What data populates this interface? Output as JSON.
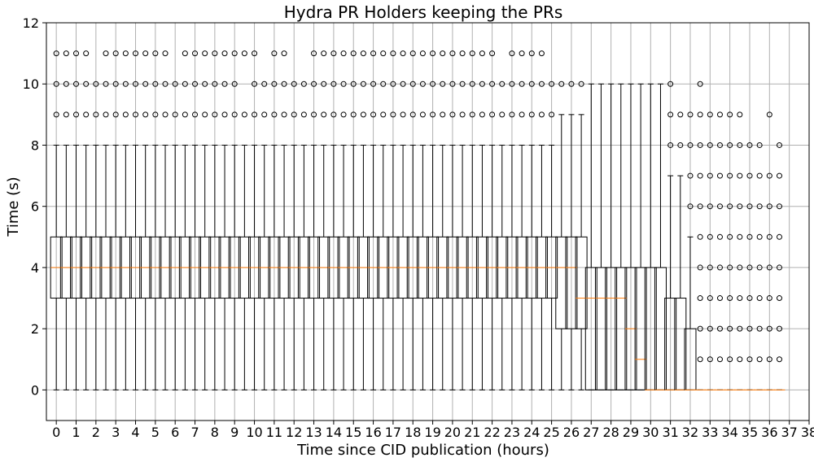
{
  "chart_data": {
    "type": "box",
    "title": "Hydra PR Holders keeping the PRs",
    "xlabel": "Time since CID publication (hours)",
    "ylabel": "Time (s)",
    "ylim": [
      -1,
      12
    ],
    "xlim": [
      -0.5,
      38
    ],
    "yticks": [
      0,
      2,
      4,
      6,
      8,
      10,
      12
    ],
    "xticks": [
      0,
      1,
      2,
      3,
      4,
      5,
      6,
      7,
      8,
      9,
      10,
      11,
      12,
      13,
      14,
      15,
      16,
      17,
      18,
      19,
      20,
      21,
      22,
      23,
      24,
      25,
      26,
      27,
      28,
      29,
      30,
      31,
      32,
      33,
      34,
      35,
      36,
      37,
      38
    ],
    "grid": true,
    "box_step_hours": 0.5,
    "colors": {
      "box": "#000000",
      "median": "#ff7f0e",
      "grid": "#b0b0b0",
      "flier": "#000000"
    },
    "boxes": [
      {
        "x": 0.0,
        "q1": 3,
        "median": 4,
        "q3": 5,
        "whisker_low": 0,
        "whisker_high": 8,
        "outliers": [
          9,
          10,
          11
        ]
      },
      {
        "x": 0.5,
        "q1": 3,
        "median": 4,
        "q3": 5,
        "whisker_low": 0,
        "whisker_high": 8,
        "outliers": [
          9,
          10,
          11
        ]
      },
      {
        "x": 1.0,
        "q1": 3,
        "median": 4,
        "q3": 5,
        "whisker_low": 0,
        "whisker_high": 8,
        "outliers": [
          9,
          10,
          11
        ]
      },
      {
        "x": 1.5,
        "q1": 3,
        "median": 4,
        "q3": 5,
        "whisker_low": 0,
        "whisker_high": 8,
        "outliers": [
          9,
          10,
          11
        ]
      },
      {
        "x": 2.0,
        "q1": 3,
        "median": 4,
        "q3": 5,
        "whisker_low": 0,
        "whisker_high": 8,
        "outliers": [
          9,
          10
        ]
      },
      {
        "x": 2.5,
        "q1": 3,
        "median": 4,
        "q3": 5,
        "whisker_low": 0,
        "whisker_high": 8,
        "outliers": [
          9,
          10,
          11
        ]
      },
      {
        "x": 3.0,
        "q1": 3,
        "median": 4,
        "q3": 5,
        "whisker_low": 0,
        "whisker_high": 8,
        "outliers": [
          9,
          10,
          11
        ]
      },
      {
        "x": 3.5,
        "q1": 3,
        "median": 4,
        "q3": 5,
        "whisker_low": 0,
        "whisker_high": 8,
        "outliers": [
          9,
          10,
          11
        ]
      },
      {
        "x": 4.0,
        "q1": 3,
        "median": 4,
        "q3": 5,
        "whisker_low": 0,
        "whisker_high": 8,
        "outliers": [
          9,
          10,
          11
        ]
      },
      {
        "x": 4.5,
        "q1": 3,
        "median": 4,
        "q3": 5,
        "whisker_low": 0,
        "whisker_high": 8,
        "outliers": [
          9,
          10,
          11
        ]
      },
      {
        "x": 5.0,
        "q1": 3,
        "median": 4,
        "q3": 5,
        "whisker_low": 0,
        "whisker_high": 8,
        "outliers": [
          9,
          10,
          11
        ]
      },
      {
        "x": 5.5,
        "q1": 3,
        "median": 4,
        "q3": 5,
        "whisker_low": 0,
        "whisker_high": 8,
        "outliers": [
          9,
          10,
          11
        ]
      },
      {
        "x": 6.0,
        "q1": 3,
        "median": 4,
        "q3": 5,
        "whisker_low": 0,
        "whisker_high": 8,
        "outliers": [
          9,
          10
        ]
      },
      {
        "x": 6.5,
        "q1": 3,
        "median": 4,
        "q3": 5,
        "whisker_low": 0,
        "whisker_high": 8,
        "outliers": [
          9,
          10,
          11
        ]
      },
      {
        "x": 7.0,
        "q1": 3,
        "median": 4,
        "q3": 5,
        "whisker_low": 0,
        "whisker_high": 8,
        "outliers": [
          9,
          10,
          11
        ]
      },
      {
        "x": 7.5,
        "q1": 3,
        "median": 4,
        "q3": 5,
        "whisker_low": 0,
        "whisker_high": 8,
        "outliers": [
          9,
          10,
          11
        ]
      },
      {
        "x": 8.0,
        "q1": 3,
        "median": 4,
        "q3": 5,
        "whisker_low": 0,
        "whisker_high": 8,
        "outliers": [
          9,
          10,
          11
        ]
      },
      {
        "x": 8.5,
        "q1": 3,
        "median": 4,
        "q3": 5,
        "whisker_low": 0,
        "whisker_high": 8,
        "outliers": [
          9,
          10,
          11
        ]
      },
      {
        "x": 9.0,
        "q1": 3,
        "median": 4,
        "q3": 5,
        "whisker_low": 0,
        "whisker_high": 8,
        "outliers": [
          9,
          10,
          11
        ]
      },
      {
        "x": 9.5,
        "q1": 3,
        "median": 4,
        "q3": 5,
        "whisker_low": 0,
        "whisker_high": 8,
        "outliers": [
          9,
          11
        ]
      },
      {
        "x": 10.0,
        "q1": 3,
        "median": 4,
        "q3": 5,
        "whisker_low": 0,
        "whisker_high": 8,
        "outliers": [
          9,
          10,
          11
        ]
      },
      {
        "x": 10.5,
        "q1": 3,
        "median": 4,
        "q3": 5,
        "whisker_low": 0,
        "whisker_high": 8,
        "outliers": [
          9,
          10
        ]
      },
      {
        "x": 11.0,
        "q1": 3,
        "median": 4,
        "q3": 5,
        "whisker_low": 0,
        "whisker_high": 8,
        "outliers": [
          9,
          10,
          11
        ]
      },
      {
        "x": 11.5,
        "q1": 3,
        "median": 4,
        "q3": 5,
        "whisker_low": 0,
        "whisker_high": 8,
        "outliers": [
          9,
          10,
          11
        ]
      },
      {
        "x": 12.0,
        "q1": 3,
        "median": 4,
        "q3": 5,
        "whisker_low": 0,
        "whisker_high": 8,
        "outliers": [
          9,
          10
        ]
      },
      {
        "x": 12.5,
        "q1": 3,
        "median": 4,
        "q3": 5,
        "whisker_low": 0,
        "whisker_high": 8,
        "outliers": [
          9,
          10
        ]
      },
      {
        "x": 13.0,
        "q1": 3,
        "median": 4,
        "q3": 5,
        "whisker_low": 0,
        "whisker_high": 8,
        "outliers": [
          9,
          10,
          11
        ]
      },
      {
        "x": 13.5,
        "q1": 3,
        "median": 4,
        "q3": 5,
        "whisker_low": 0,
        "whisker_high": 8,
        "outliers": [
          9,
          10,
          11
        ]
      },
      {
        "x": 14.0,
        "q1": 3,
        "median": 4,
        "q3": 5,
        "whisker_low": 0,
        "whisker_high": 8,
        "outliers": [
          9,
          10,
          11
        ]
      },
      {
        "x": 14.5,
        "q1": 3,
        "median": 4,
        "q3": 5,
        "whisker_low": 0,
        "whisker_high": 8,
        "outliers": [
          9,
          10,
          11
        ]
      },
      {
        "x": 15.0,
        "q1": 3,
        "median": 4,
        "q3": 5,
        "whisker_low": 0,
        "whisker_high": 8,
        "outliers": [
          9,
          10,
          11
        ]
      },
      {
        "x": 15.5,
        "q1": 3,
        "median": 4,
        "q3": 5,
        "whisker_low": 0,
        "whisker_high": 8,
        "outliers": [
          9,
          10,
          11
        ]
      },
      {
        "x": 16.0,
        "q1": 3,
        "median": 4,
        "q3": 5,
        "whisker_low": 0,
        "whisker_high": 8,
        "outliers": [
          9,
          10,
          11
        ]
      },
      {
        "x": 16.5,
        "q1": 3,
        "median": 4,
        "q3": 5,
        "whisker_low": 0,
        "whisker_high": 8,
        "outliers": [
          9,
          10,
          11
        ]
      },
      {
        "x": 17.0,
        "q1": 3,
        "median": 4,
        "q3": 5,
        "whisker_low": 0,
        "whisker_high": 8,
        "outliers": [
          9,
          10,
          11
        ]
      },
      {
        "x": 17.5,
        "q1": 3,
        "median": 4,
        "q3": 5,
        "whisker_low": 0,
        "whisker_high": 8,
        "outliers": [
          9,
          10,
          11
        ]
      },
      {
        "x": 18.0,
        "q1": 3,
        "median": 4,
        "q3": 5,
        "whisker_low": 0,
        "whisker_high": 8,
        "outliers": [
          9,
          10,
          11
        ]
      },
      {
        "x": 18.5,
        "q1": 3,
        "median": 4,
        "q3": 5,
        "whisker_low": 0,
        "whisker_high": 8,
        "outliers": [
          9,
          10,
          11
        ]
      },
      {
        "x": 19.0,
        "q1": 3,
        "median": 4,
        "q3": 5,
        "whisker_low": 0,
        "whisker_high": 8,
        "outliers": [
          9,
          10,
          11
        ]
      },
      {
        "x": 19.5,
        "q1": 3,
        "median": 4,
        "q3": 5,
        "whisker_low": 0,
        "whisker_high": 8,
        "outliers": [
          9,
          10,
          11
        ]
      },
      {
        "x": 20.0,
        "q1": 3,
        "median": 4,
        "q3": 5,
        "whisker_low": 0,
        "whisker_high": 8,
        "outliers": [
          9,
          10,
          11
        ]
      },
      {
        "x": 20.5,
        "q1": 3,
        "median": 4,
        "q3": 5,
        "whisker_low": 0,
        "whisker_high": 8,
        "outliers": [
          9,
          10,
          11
        ]
      },
      {
        "x": 21.0,
        "q1": 3,
        "median": 4,
        "q3": 5,
        "whisker_low": 0,
        "whisker_high": 8,
        "outliers": [
          9,
          10,
          11
        ]
      },
      {
        "x": 21.5,
        "q1": 3,
        "median": 4,
        "q3": 5,
        "whisker_low": 0,
        "whisker_high": 8,
        "outliers": [
          9,
          10,
          11
        ]
      },
      {
        "x": 22.0,
        "q1": 3,
        "median": 4,
        "q3": 5,
        "whisker_low": 0,
        "whisker_high": 8,
        "outliers": [
          9,
          10,
          11
        ]
      },
      {
        "x": 22.5,
        "q1": 3,
        "median": 4,
        "q3": 5,
        "whisker_low": 0,
        "whisker_high": 8,
        "outliers": [
          9,
          10
        ]
      },
      {
        "x": 23.0,
        "q1": 3,
        "median": 4,
        "q3": 5,
        "whisker_low": 0,
        "whisker_high": 8,
        "outliers": [
          9,
          10,
          11
        ]
      },
      {
        "x": 23.5,
        "q1": 3,
        "median": 4,
        "q3": 5,
        "whisker_low": 0,
        "whisker_high": 8,
        "outliers": [
          9,
          10,
          11
        ]
      },
      {
        "x": 24.0,
        "q1": 3,
        "median": 4,
        "q3": 5,
        "whisker_low": 0,
        "whisker_high": 8,
        "outliers": [
          9,
          10,
          11
        ]
      },
      {
        "x": 24.5,
        "q1": 3,
        "median": 4,
        "q3": 5,
        "whisker_low": 0,
        "whisker_high": 8,
        "outliers": [
          9,
          10,
          11
        ]
      },
      {
        "x": 25.0,
        "q1": 3,
        "median": 4,
        "q3": 5,
        "whisker_low": 0,
        "whisker_high": 8,
        "outliers": [
          9,
          10
        ]
      },
      {
        "x": 25.5,
        "q1": 2,
        "median": 4,
        "q3": 5,
        "whisker_low": 0,
        "whisker_high": 9,
        "outliers": [
          10
        ]
      },
      {
        "x": 26.0,
        "q1": 2,
        "median": 4,
        "q3": 5,
        "whisker_low": 0,
        "whisker_high": 9,
        "outliers": [
          10
        ]
      },
      {
        "x": 26.5,
        "q1": 2,
        "median": 3,
        "q3": 5,
        "whisker_low": 0,
        "whisker_high": 9,
        "outliers": [
          10
        ]
      },
      {
        "x": 27.0,
        "q1": 0,
        "median": 3,
        "q3": 4,
        "whisker_low": 0,
        "whisker_high": 10,
        "outliers": []
      },
      {
        "x": 27.5,
        "q1": 0,
        "median": 3,
        "q3": 4,
        "whisker_low": 0,
        "whisker_high": 10,
        "outliers": []
      },
      {
        "x": 28.0,
        "q1": 0,
        "median": 3,
        "q3": 4,
        "whisker_low": 0,
        "whisker_high": 10,
        "outliers": []
      },
      {
        "x": 28.5,
        "q1": 0,
        "median": 3,
        "q3": 4,
        "whisker_low": 0,
        "whisker_high": 10,
        "outliers": []
      },
      {
        "x": 29.0,
        "q1": 0,
        "median": 2,
        "q3": 4,
        "whisker_low": 0,
        "whisker_high": 10,
        "outliers": []
      },
      {
        "x": 29.5,
        "q1": 0,
        "median": 1,
        "q3": 4,
        "whisker_low": 0,
        "whisker_high": 10,
        "outliers": []
      },
      {
        "x": 30.0,
        "q1": 0,
        "median": 0,
        "q3": 4,
        "whisker_low": 0,
        "whisker_high": 10,
        "outliers": []
      },
      {
        "x": 30.5,
        "q1": 0,
        "median": 0,
        "q3": 4,
        "whisker_low": 0,
        "whisker_high": 10,
        "outliers": []
      },
      {
        "x": 31.0,
        "q1": 0,
        "median": 0,
        "q3": 3,
        "whisker_low": 0,
        "whisker_high": 7,
        "outliers": [
          8,
          9,
          10
        ]
      },
      {
        "x": 31.5,
        "q1": 0,
        "median": 0,
        "q3": 3,
        "whisker_low": 0,
        "whisker_high": 7,
        "outliers": [
          8,
          9
        ]
      },
      {
        "x": 32.0,
        "q1": 0,
        "median": 0,
        "q3": 2,
        "whisker_low": 0,
        "whisker_high": 5,
        "outliers": [
          6,
          7,
          8,
          9
        ]
      },
      {
        "x": 32.5,
        "q1": 0,
        "median": 0,
        "q3": 0,
        "whisker_low": 0,
        "whisker_high": 0,
        "outliers": [
          1,
          2,
          3,
          4,
          5,
          6,
          7,
          8,
          9,
          10
        ]
      },
      {
        "x": 33.0,
        "q1": 0,
        "median": 0,
        "q3": 0,
        "whisker_low": 0,
        "whisker_high": 0,
        "outliers": [
          1,
          2,
          3,
          4,
          5,
          6,
          7,
          8,
          9
        ]
      },
      {
        "x": 33.5,
        "q1": 0,
        "median": 0,
        "q3": 0,
        "whisker_low": 0,
        "whisker_high": 0,
        "outliers": [
          1,
          2,
          3,
          4,
          5,
          6,
          7,
          8,
          9
        ]
      },
      {
        "x": 34.0,
        "q1": 0,
        "median": 0,
        "q3": 0,
        "whisker_low": 0,
        "whisker_high": 0,
        "outliers": [
          1,
          2,
          3,
          4,
          5,
          6,
          7,
          8,
          9
        ]
      },
      {
        "x": 34.5,
        "q1": 0,
        "median": 0,
        "q3": 0,
        "whisker_low": 0,
        "whisker_high": 0,
        "outliers": [
          1,
          2,
          3,
          4,
          5,
          6,
          7,
          8,
          9
        ]
      },
      {
        "x": 35.0,
        "q1": 0,
        "median": 0,
        "q3": 0,
        "whisker_low": 0,
        "whisker_high": 0,
        "outliers": [
          1,
          2,
          3,
          4,
          5,
          6,
          7,
          8
        ]
      },
      {
        "x": 35.5,
        "q1": 0,
        "median": 0,
        "q3": 0,
        "whisker_low": 0,
        "whisker_high": 0,
        "outliers": [
          1,
          2,
          3,
          4,
          5,
          6,
          7,
          8
        ]
      },
      {
        "x": 36.0,
        "q1": 0,
        "median": 0,
        "q3": 0,
        "whisker_low": 0,
        "whisker_high": 0,
        "outliers": [
          1,
          2,
          3,
          4,
          5,
          6,
          7,
          9
        ]
      },
      {
        "x": 36.5,
        "q1": 0,
        "median": 0,
        "q3": 0,
        "whisker_low": 0,
        "whisker_high": 0,
        "outliers": [
          1,
          2,
          3,
          4,
          5,
          6,
          7,
          8
        ]
      }
    ]
  }
}
